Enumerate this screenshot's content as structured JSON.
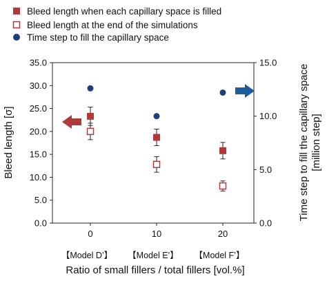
{
  "chart_data": {
    "type": "scatter",
    "x": [
      0,
      10,
      20
    ],
    "categories": [
      "0",
      "10",
      "20"
    ],
    "model_labels": [
      "【Model D’】",
      "【Model E’】",
      "【Model F’】"
    ],
    "xlabel": "Ratio of small fillers / total fillers [vol.%]",
    "ylabel_left": "Bleed length [σ]",
    "ylabel_right_line1": "Time step to fill the capillary space",
    "ylabel_right_line2": "[million step]",
    "ylim_left": [
      0,
      35
    ],
    "ylim_right": [
      0,
      15
    ],
    "yticks_left": [
      "0.0",
      "5.0",
      "10.0",
      "15.0",
      "20.0",
      "25.0",
      "30.0",
      "35.0"
    ],
    "yticks_right": [
      "0.0",
      "5.0",
      "10.0",
      "15.0"
    ],
    "grid": false,
    "legend_position": "top",
    "series": [
      {
        "name": "Bleed length when each capillary space is filled",
        "axis": "left",
        "marker": "filled-square",
        "color": "#b03a3a",
        "values": [
          23.3,
          18.7,
          15.8
        ],
        "errors": [
          2.0,
          1.8,
          1.8
        ]
      },
      {
        "name": "Bleed length at the end of the simulations",
        "axis": "left",
        "marker": "open-square",
        "color": "#b03a3a",
        "values": [
          20.0,
          12.8,
          8.1
        ],
        "errors": [
          1.8,
          1.7,
          1.1
        ]
      },
      {
        "name": "Time step to fill the capillary space",
        "axis": "right",
        "marker": "circle",
        "color": "#1f3f7a",
        "values": [
          12.6,
          10.0,
          12.2
        ]
      }
    ],
    "arrow_colors": {
      "left": "#b03a3a",
      "right": "#1f5a9a"
    }
  }
}
